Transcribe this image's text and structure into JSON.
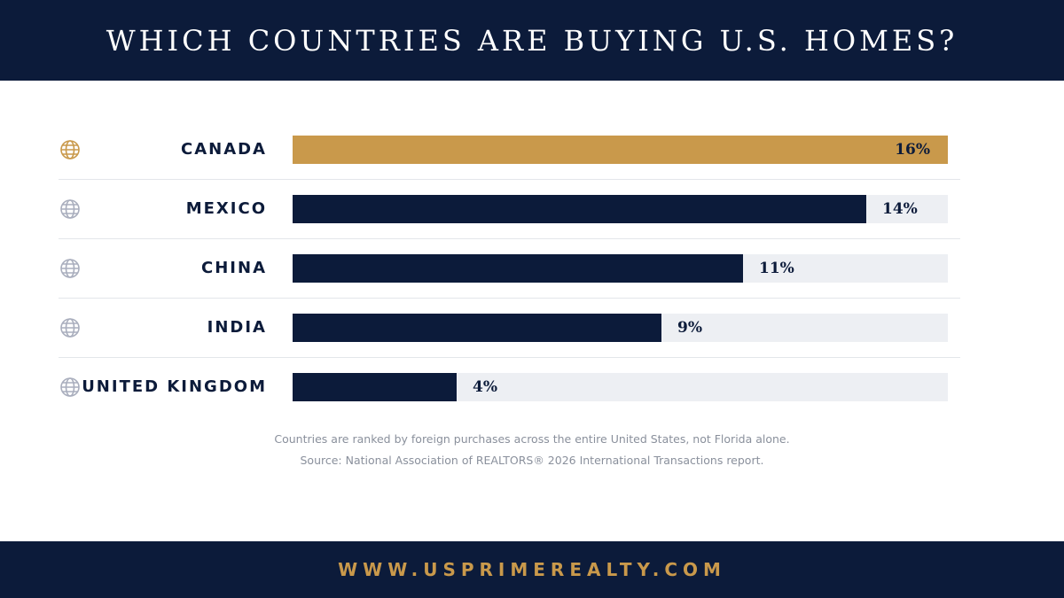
{
  "header": {
    "title": "WHICH COUNTRIES ARE BUYING U.S. HOMES?"
  },
  "chart_data": {
    "type": "bar",
    "orientation": "horizontal",
    "title": "WHICH COUNTRIES ARE BUYING U.S. HOMES?",
    "categories": [
      "CANADA",
      "MEXICO",
      "CHINA",
      "INDIA",
      "UNITED KINGDOM"
    ],
    "values": [
      16,
      14,
      11,
      9,
      4
    ],
    "value_labels": [
      "16%",
      "14%",
      "11%",
      "9%",
      "4%"
    ],
    "unit": "%",
    "xlim": [
      0,
      16
    ],
    "grid": false,
    "highlight_index": 0,
    "colors": {
      "highlight": "#c9994b",
      "bar": "#0c1b3a",
      "track": "#edeff3",
      "globe_default": "#a9aebd"
    }
  },
  "notes": {
    "line1": "Countries are ranked by foreign purchases across the entire United States, not Florida alone.",
    "line2": "Source: National Association of REALTORS® 2026 International Transactions report."
  },
  "footer": {
    "url": "WWW.USPRIMEREALTY.COM"
  },
  "icons": {
    "row_icon": "globe-icon"
  }
}
